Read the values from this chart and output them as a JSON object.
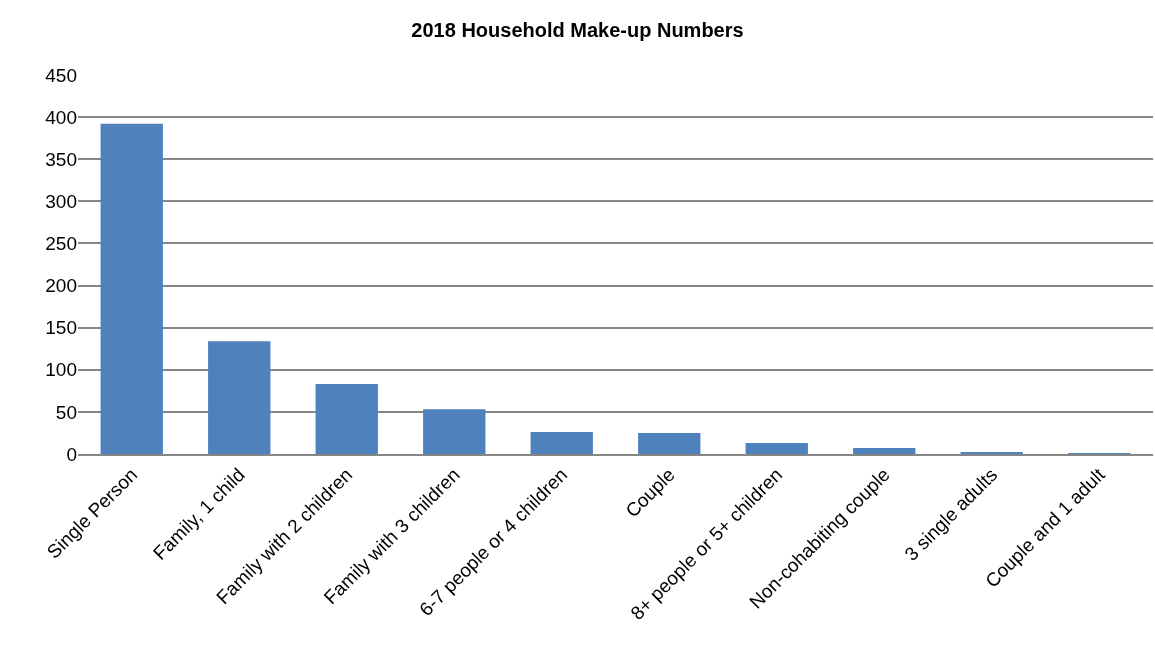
{
  "chart_data": {
    "type": "bar",
    "title": "2018 Household Make-up Numbers",
    "categories": [
      "Single Person",
      "Family, 1 child",
      "Family with 2 children",
      "Family with 3 children",
      "6-7 people or 4 children",
      "Couple",
      "8+ people or 5+ children",
      "Non-cohabiting couple",
      "3 single adults",
      "Couple and 1 adult"
    ],
    "values": [
      392,
      134,
      83,
      53,
      26,
      25,
      13,
      7,
      2,
      1
    ],
    "color": "#4f81bd",
    "ylim": [
      0,
      450
    ],
    "yticks": [
      0,
      50,
      100,
      150,
      200,
      250,
      300,
      350,
      400,
      450
    ],
    "grid": "y",
    "legend": false
  }
}
